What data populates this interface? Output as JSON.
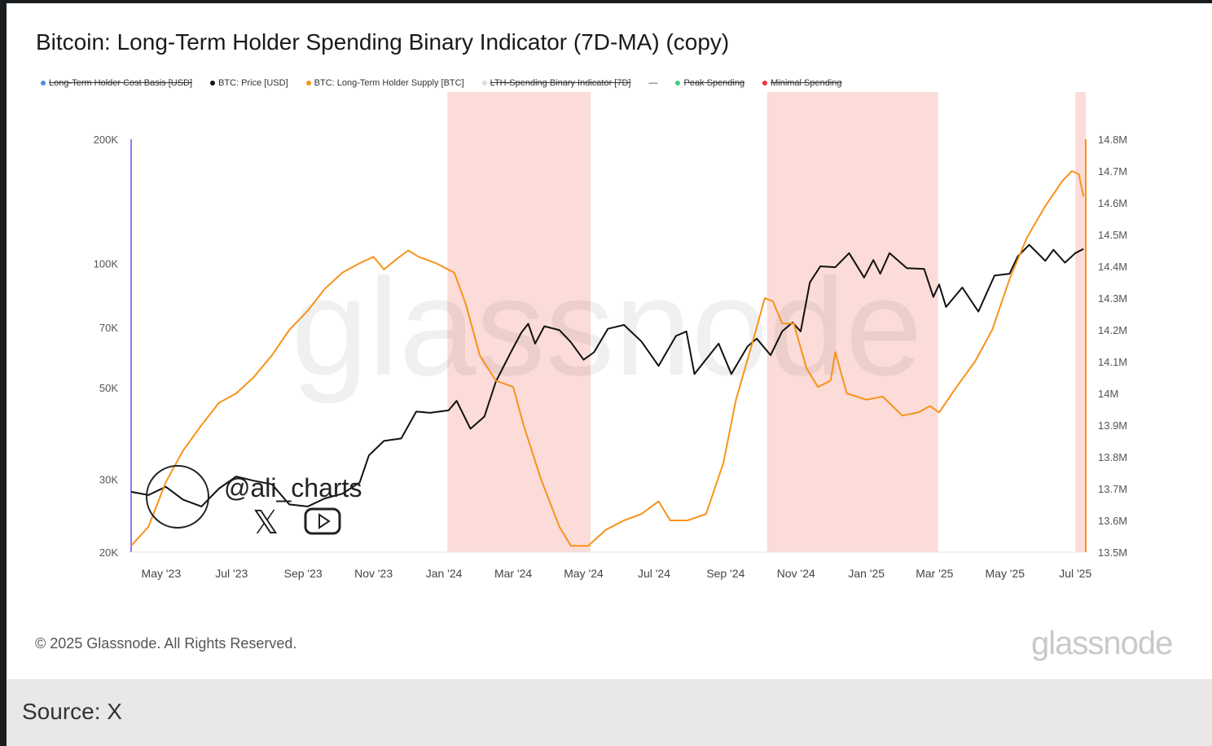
{
  "title": "Bitcoin: Long-Term Holder Spending Binary Indicator (7D-MA)  (copy)",
  "footer": {
    "copyright": "© 2025 Glassnode. All Rights Reserved.",
    "brand": "glassnode",
    "watermark": "glassnode",
    "author_watermark": "@ali_charts"
  },
  "source": "Source: X",
  "legend": [
    {
      "label": "Long-Term Holder Cost Basis [USD]",
      "color": "#4a90e2",
      "hidden": true
    },
    {
      "label": "BTC: Price [USD]",
      "color": "#111111",
      "hidden": false
    },
    {
      "label": "BTC: Long-Term Holder Supply [BTC]",
      "color": "#f7931a",
      "hidden": false
    },
    {
      "label": "LTH-Spending Binary Indicator [7D]",
      "color": "#dddddd",
      "hidden": true
    },
    {
      "label": "—",
      "color": "",
      "hidden": false
    },
    {
      "label": "Peak Spending",
      "color": "#3ccf7a",
      "hidden": true
    },
    {
      "label": "Minimal Spending",
      "color": "#f0323c",
      "hidden": true
    }
  ],
  "chart_data": {
    "type": "line",
    "title": "Bitcoin: Long-Term Holder Spending Binary Indicator (7D-MA)",
    "x_range": [
      "2023-04-05",
      "2025-07-10"
    ],
    "x_ticks": [
      [
        "2023-05-01",
        "May '23"
      ],
      [
        "2023-07-01",
        "Jul '23"
      ],
      [
        "2023-09-01",
        "Sep '23"
      ],
      [
        "2023-11-01",
        "Nov '23"
      ],
      [
        "2024-01-01",
        "Jan '24"
      ],
      [
        "2024-03-01",
        "Mar '24"
      ],
      [
        "2024-05-01",
        "May '24"
      ],
      [
        "2024-07-01",
        "Jul '24"
      ],
      [
        "2024-09-01",
        "Sep '24"
      ],
      [
        "2024-11-01",
        "Nov '24"
      ],
      [
        "2025-01-01",
        "Jan '25"
      ],
      [
        "2025-03-01",
        "Mar '25"
      ],
      [
        "2025-05-01",
        "May '25"
      ],
      [
        "2025-07-01",
        "Jul '25"
      ]
    ],
    "y_left": {
      "scale": "log",
      "range": [
        20000,
        200000
      ],
      "ticks": [
        [
          20000,
          "20K"
        ],
        [
          30000,
          "30K"
        ],
        [
          50000,
          "50K"
        ],
        [
          70000,
          "70K"
        ],
        [
          100000,
          "100K"
        ],
        [
          200000,
          "200K"
        ]
      ]
    },
    "y_right": {
      "scale": "linear",
      "range": [
        13.5,
        14.8
      ],
      "unit": "M",
      "ticks": [
        [
          13.5,
          "13.5M"
        ],
        [
          13.6,
          "13.6M"
        ],
        [
          13.7,
          "13.7M"
        ],
        [
          13.8,
          "13.8M"
        ],
        [
          13.9,
          "13.9M"
        ],
        [
          14.0,
          "14M"
        ],
        [
          14.1,
          "14.1M"
        ],
        [
          14.2,
          "14.2M"
        ],
        [
          14.3,
          "14.3M"
        ],
        [
          14.4,
          "14.4M"
        ],
        [
          14.5,
          "14.5M"
        ],
        [
          14.6,
          "14.6M"
        ],
        [
          14.7,
          "14.7M"
        ],
        [
          14.8,
          "14.8M"
        ]
      ]
    },
    "spending_periods": [
      [
        "2024-01-04",
        "2024-05-07"
      ],
      [
        "2024-10-07",
        "2025-03-04"
      ],
      [
        "2025-07-01",
        "2025-07-10"
      ]
    ],
    "series": [
      {
        "name": "BTC: Price [USD]",
        "axis": "left",
        "color": "#111111",
        "points": [
          [
            "2023-04-05",
            28000
          ],
          [
            "2023-04-20",
            27500
          ],
          [
            "2023-05-05",
            28800
          ],
          [
            "2023-05-20",
            26800
          ],
          [
            "2023-06-05",
            25800
          ],
          [
            "2023-06-20",
            28500
          ],
          [
            "2023-07-05",
            30500
          ],
          [
            "2023-07-20",
            29800
          ],
          [
            "2023-08-05",
            29200
          ],
          [
            "2023-08-20",
            26100
          ],
          [
            "2023-09-05",
            25800
          ],
          [
            "2023-09-20",
            27000
          ],
          [
            "2023-10-05",
            27700
          ],
          [
            "2023-10-20",
            29500
          ],
          [
            "2023-10-28",
            34300
          ],
          [
            "2023-11-10",
            37200
          ],
          [
            "2023-11-25",
            37700
          ],
          [
            "2023-12-08",
            43800
          ],
          [
            "2023-12-20",
            43500
          ],
          [
            "2024-01-05",
            44100
          ],
          [
            "2024-01-12",
            46500
          ],
          [
            "2024-01-24",
            39800
          ],
          [
            "2024-02-05",
            42600
          ],
          [
            "2024-02-15",
            51800
          ],
          [
            "2024-02-28",
            61000
          ],
          [
            "2024-03-08",
            68000
          ],
          [
            "2024-03-14",
            71500
          ],
          [
            "2024-03-20",
            64000
          ],
          [
            "2024-03-28",
            70500
          ],
          [
            "2024-04-10",
            69000
          ],
          [
            "2024-04-20",
            64500
          ],
          [
            "2024-05-01",
            58500
          ],
          [
            "2024-05-10",
            61000
          ],
          [
            "2024-05-22",
            69500
          ],
          [
            "2024-06-05",
            71000
          ],
          [
            "2024-06-20",
            64800
          ],
          [
            "2024-07-05",
            56500
          ],
          [
            "2024-07-20",
            66800
          ],
          [
            "2024-07-29",
            68500
          ],
          [
            "2024-08-05",
            54000
          ],
          [
            "2024-08-20",
            61000
          ],
          [
            "2024-08-26",
            64000
          ],
          [
            "2024-09-06",
            54000
          ],
          [
            "2024-09-20",
            63000
          ],
          [
            "2024-09-28",
            65800
          ],
          [
            "2024-10-10",
            60000
          ],
          [
            "2024-10-20",
            68500
          ],
          [
            "2024-10-29",
            72000
          ],
          [
            "2024-11-05",
            68500
          ],
          [
            "2024-11-13",
            90000
          ],
          [
            "2024-11-22",
            98500
          ],
          [
            "2024-12-05",
            98000
          ],
          [
            "2024-12-17",
            106000
          ],
          [
            "2024-12-30",
            92500
          ],
          [
            "2025-01-07",
            102000
          ],
          [
            "2025-01-13",
            94500
          ],
          [
            "2025-01-21",
            106000
          ],
          [
            "2025-02-05",
            97500
          ],
          [
            "2025-02-20",
            97000
          ],
          [
            "2025-02-28",
            83000
          ],
          [
            "2025-03-05",
            89000
          ],
          [
            "2025-03-11",
            78500
          ],
          [
            "2025-03-25",
            87500
          ],
          [
            "2025-04-08",
            76500
          ],
          [
            "2025-04-22",
            93500
          ],
          [
            "2025-05-05",
            94500
          ],
          [
            "2025-05-12",
            104000
          ],
          [
            "2025-05-22",
            111000
          ],
          [
            "2025-06-05",
            101500
          ],
          [
            "2025-06-12",
            108000
          ],
          [
            "2025-06-22",
            100500
          ],
          [
            "2025-07-01",
            106000
          ],
          [
            "2025-07-08",
            108500
          ]
        ]
      },
      {
        "name": "BTC: Long-Term Holder Supply [BTC]",
        "axis": "right",
        "color": "#f7931a",
        "points": [
          [
            "2023-04-05",
            13.52
          ],
          [
            "2023-04-20",
            13.58
          ],
          [
            "2023-05-05",
            13.72
          ],
          [
            "2023-05-20",
            13.82
          ],
          [
            "2023-06-05",
            13.9
          ],
          [
            "2023-06-20",
            13.97
          ],
          [
            "2023-07-05",
            14.0
          ],
          [
            "2023-07-20",
            14.05
          ],
          [
            "2023-08-05",
            14.12
          ],
          [
            "2023-08-20",
            14.2
          ],
          [
            "2023-09-05",
            14.26
          ],
          [
            "2023-09-20",
            14.33
          ],
          [
            "2023-10-05",
            14.38
          ],
          [
            "2023-10-20",
            14.41
          ],
          [
            "2023-11-01",
            14.43
          ],
          [
            "2023-11-10",
            14.39
          ],
          [
            "2023-11-20",
            14.42
          ],
          [
            "2023-12-01",
            14.45
          ],
          [
            "2023-12-10",
            14.43
          ],
          [
            "2023-12-25",
            14.41
          ],
          [
            "2024-01-10",
            14.38
          ],
          [
            "2024-01-20",
            14.28
          ],
          [
            "2024-02-01",
            14.12
          ],
          [
            "2024-02-15",
            14.04
          ],
          [
            "2024-03-01",
            14.02
          ],
          [
            "2024-03-10",
            13.9
          ],
          [
            "2024-03-25",
            13.73
          ],
          [
            "2024-04-10",
            13.58
          ],
          [
            "2024-04-20",
            13.52
          ],
          [
            "2024-05-05",
            13.52
          ],
          [
            "2024-05-20",
            13.57
          ],
          [
            "2024-06-05",
            13.6
          ],
          [
            "2024-06-20",
            13.62
          ],
          [
            "2024-07-05",
            13.66
          ],
          [
            "2024-07-15",
            13.6
          ],
          [
            "2024-07-30",
            13.6
          ],
          [
            "2024-08-15",
            13.62
          ],
          [
            "2024-08-30",
            13.78
          ],
          [
            "2024-09-10",
            13.98
          ],
          [
            "2024-09-25",
            14.17
          ],
          [
            "2024-10-05",
            14.3
          ],
          [
            "2024-10-12",
            14.29
          ],
          [
            "2024-10-20",
            14.22
          ],
          [
            "2024-10-30",
            14.22
          ],
          [
            "2024-11-10",
            14.08
          ],
          [
            "2024-11-20",
            14.02
          ],
          [
            "2024-12-01",
            14.04
          ],
          [
            "2024-12-05",
            14.13
          ],
          [
            "2024-12-15",
            14.0
          ],
          [
            "2025-01-01",
            13.98
          ],
          [
            "2025-01-15",
            13.99
          ],
          [
            "2025-02-01",
            13.93
          ],
          [
            "2025-02-15",
            13.94
          ],
          [
            "2025-02-25",
            13.96
          ],
          [
            "2025-03-05",
            13.94
          ],
          [
            "2025-03-20",
            14.02
          ],
          [
            "2025-04-05",
            14.1
          ],
          [
            "2025-04-20",
            14.2
          ],
          [
            "2025-05-05",
            14.36
          ],
          [
            "2025-05-20",
            14.49
          ],
          [
            "2025-06-05",
            14.59
          ],
          [
            "2025-06-20",
            14.67
          ],
          [
            "2025-06-28",
            14.7
          ],
          [
            "2025-07-04",
            14.69
          ],
          [
            "2025-07-08",
            14.62
          ]
        ]
      }
    ]
  }
}
